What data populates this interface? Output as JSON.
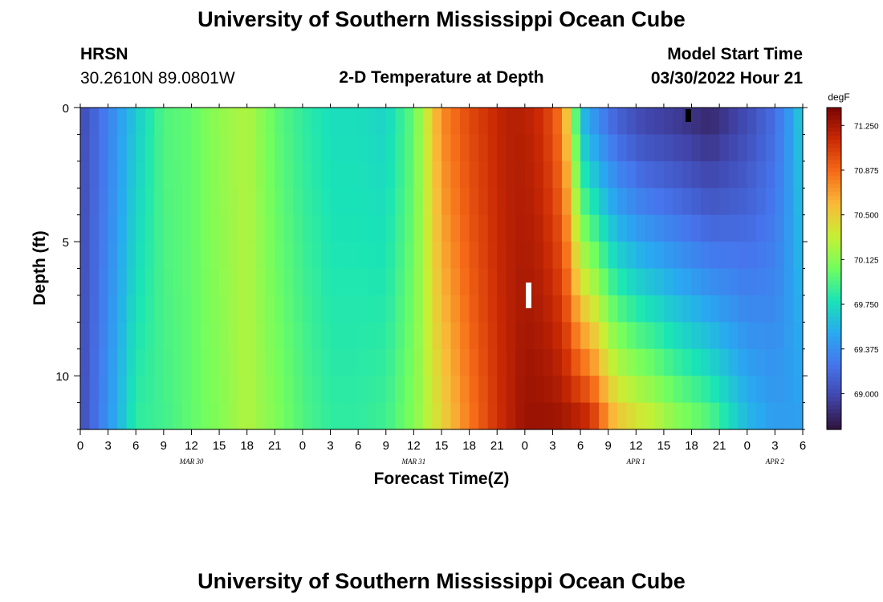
{
  "page": {
    "title_top": "University of Southern Mississippi Ocean Cube",
    "title_bottom": "University of Southern Mississippi Ocean Cube",
    "station": "HRSN",
    "coordinates": "30.2610N  89.0801W",
    "plot_title": "2-D Temperature at Depth",
    "model_start_label": "Model Start Time",
    "model_start_value": "03/30/2022 Hour 21"
  },
  "chart_data": {
    "type": "heatmap",
    "title": "2-D Temperature at Depth",
    "xlabel": "Forecast Time(Z)",
    "ylabel": "Depth (ft)",
    "x_hours_range": [
      0,
      78
    ],
    "x_tick_labels": [
      "0",
      "3",
      "6",
      "9",
      "12",
      "15",
      "18",
      "21",
      "0",
      "3",
      "6",
      "9",
      "12",
      "15",
      "18",
      "21",
      "0",
      "3",
      "6",
      "9",
      "12",
      "15",
      "18",
      "21",
      "0",
      "3",
      "6"
    ],
    "date_labels": [
      {
        "hour": 12,
        "text": "MAR 30"
      },
      {
        "hour": 36,
        "text": "MAR 31"
      },
      {
        "hour": 60,
        "text": "APR 1"
      },
      {
        "hour": 75,
        "text": "APR 2"
      }
    ],
    "depth_range_ft": [
      0,
      12
    ],
    "y_tick_labels": [
      "0",
      "5",
      "10"
    ],
    "colorbar": {
      "units": "degF",
      "min": 68.7,
      "max": 71.4,
      "tick_labels": [
        "71.250",
        "70.875",
        "70.500",
        "70.125",
        "69.750",
        "69.375",
        "69.000"
      ]
    },
    "surface_temperature_degF": [
      [
        0,
        69.0
      ],
      [
        3,
        69.3
      ],
      [
        6,
        69.65
      ],
      [
        9,
        69.95
      ],
      [
        12,
        70.0
      ],
      [
        15,
        70.15
      ],
      [
        18,
        70.25
      ],
      [
        21,
        70.0
      ],
      [
        24,
        69.85
      ],
      [
        27,
        69.75
      ],
      [
        30,
        69.75
      ],
      [
        33,
        69.7
      ],
      [
        36,
        70.0
      ],
      [
        39,
        70.75
      ],
      [
        42,
        71.0
      ],
      [
        44,
        71.1
      ],
      [
        46,
        71.2
      ],
      [
        48,
        71.2
      ],
      [
        50,
        71.1
      ],
      [
        52,
        70.8
      ],
      [
        53,
        70.3
      ],
      [
        54,
        69.6
      ],
      [
        56,
        69.3
      ],
      [
        58,
        69.1
      ],
      [
        61,
        68.95
      ],
      [
        64,
        68.9
      ],
      [
        66,
        68.85
      ],
      [
        68,
        68.8
      ],
      [
        70,
        68.9
      ],
      [
        72,
        69.0
      ],
      [
        75,
        69.2
      ],
      [
        77,
        69.5
      ],
      [
        78,
        69.7
      ]
    ],
    "deep_temperature_degF": [
      [
        0,
        69.0
      ],
      [
        3,
        69.4
      ],
      [
        6,
        69.85
      ],
      [
        9,
        69.9
      ],
      [
        12,
        70.0
      ],
      [
        15,
        70.1
      ],
      [
        18,
        70.25
      ],
      [
        21,
        70.1
      ],
      [
        24,
        69.95
      ],
      [
        27,
        69.85
      ],
      [
        30,
        69.85
      ],
      [
        33,
        69.9
      ],
      [
        36,
        70.1
      ],
      [
        39,
        70.45
      ],
      [
        42,
        70.8
      ],
      [
        45,
        71.1
      ],
      [
        48,
        71.3
      ],
      [
        51,
        71.3
      ],
      [
        54,
        71.25
      ],
      [
        55,
        71.2
      ],
      [
        56,
        71.0
      ],
      [
        57,
        70.75
      ],
      [
        58,
        70.6
      ],
      [
        60,
        70.45
      ],
      [
        62,
        70.35
      ],
      [
        64,
        70.2
      ],
      [
        66,
        70.1
      ],
      [
        68,
        70.0
      ],
      [
        70,
        69.8
      ],
      [
        72,
        69.6
      ],
      [
        75,
        69.45
      ],
      [
        78,
        69.45
      ]
    ],
    "depth_layers": 12
  }
}
